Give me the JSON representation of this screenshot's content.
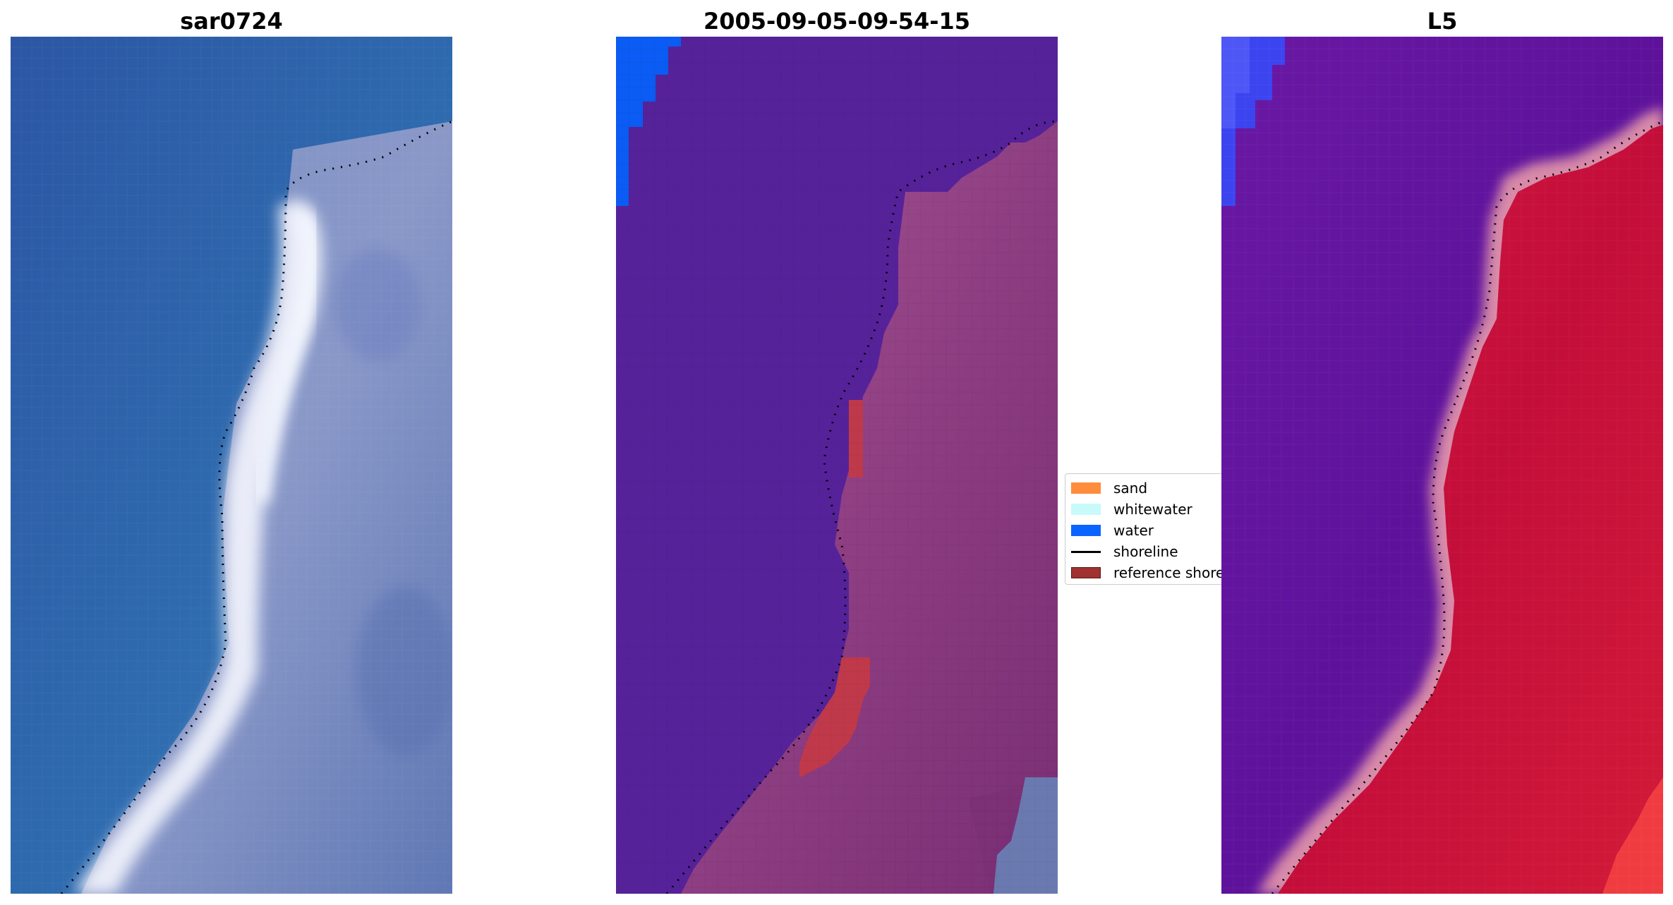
{
  "panels": [
    {
      "title": "sar0724"
    },
    {
      "title": "2005-09-05-09-54-15"
    },
    {
      "title": "L5"
    }
  ],
  "legend": {
    "items": [
      {
        "label": "sand",
        "color": "#ff8c3c",
        "kind": "patch"
      },
      {
        "label": "whitewater",
        "color": "#c8fafa",
        "kind": "patch"
      },
      {
        "label": "water",
        "color": "#0a64ff",
        "kind": "patch"
      },
      {
        "label": "shoreline",
        "color": "#000000",
        "kind": "line"
      },
      {
        "label": "reference shore",
        "color": "#a03232",
        "kind": "patch"
      }
    ]
  },
  "colors": {
    "ocean_rgb": "#2f5ea8",
    "beach_rgb": "#e8eef8",
    "land_rgb": "#6f84b8",
    "class_water": "#56229a",
    "class_land": "#8a3a7e",
    "class_sand_edge": "#b45c9a",
    "class_reference": "#c0394a",
    "class_water_blue": "#0a5cf4",
    "index_water": "#5e129c",
    "index_land": "#c8103c",
    "index_edge": "#d88aa8",
    "index_blue": "#3c44f0"
  }
}
